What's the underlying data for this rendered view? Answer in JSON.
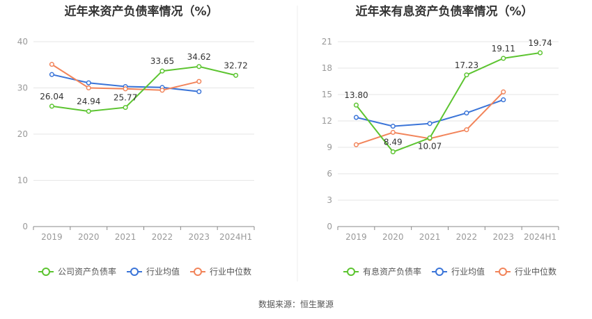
{
  "source": "数据来源：恒生聚源",
  "chart_data": [
    {
      "type": "line",
      "title": "近年来资产负债率情况（%）",
      "categories": [
        "2019",
        "2020",
        "2021",
        "2022",
        "2023",
        "2024H1"
      ],
      "ylim": [
        0,
        40
      ],
      "yticks": [
        0,
        10,
        20,
        30,
        40
      ],
      "grid": true,
      "legend_position": "bottom",
      "series": [
        {
          "name": "公司资产负债率",
          "color": "#5cc430",
          "values": [
            26.04,
            24.94,
            25.77,
            33.65,
            34.62,
            32.72
          ],
          "labeled": true
        },
        {
          "name": "行业均值",
          "color": "#3a74d8",
          "values": [
            32.9,
            31.1,
            30.3,
            30.1,
            29.2,
            null
          ],
          "labeled": false
        },
        {
          "name": "行业中位数",
          "color": "#f2845a",
          "values": [
            35.1,
            30.0,
            29.8,
            29.5,
            31.4,
            null
          ],
          "labeled": false
        }
      ],
      "data_labels": [
        "26.04",
        "24.94",
        "25.77",
        "33.65",
        "34.62",
        "32.72"
      ]
    },
    {
      "type": "line",
      "title": "近年来有息资产负债率情况（%）",
      "categories": [
        "2019",
        "2020",
        "2021",
        "2022",
        "2023",
        "2024H1"
      ],
      "ylim": [
        0,
        21
      ],
      "yticks": [
        0,
        3,
        6,
        9,
        12,
        15,
        18,
        21
      ],
      "grid": true,
      "legend_position": "bottom",
      "series": [
        {
          "name": "有息资产负债率",
          "color": "#5cc430",
          "values": [
            13.8,
            8.49,
            10.07,
            17.23,
            19.11,
            19.74
          ],
          "labeled": true
        },
        {
          "name": "行业均值",
          "color": "#3a74d8",
          "values": [
            12.4,
            11.4,
            11.7,
            12.9,
            14.4,
            null
          ],
          "labeled": false
        },
        {
          "name": "行业中位数",
          "color": "#f2845a",
          "values": [
            9.3,
            10.7,
            10.0,
            11.0,
            15.3,
            null
          ],
          "labeled": false
        }
      ],
      "data_labels": [
        "13.80",
        "8.49",
        "10.07",
        "17.23",
        "19.11",
        "19.74"
      ]
    }
  ]
}
